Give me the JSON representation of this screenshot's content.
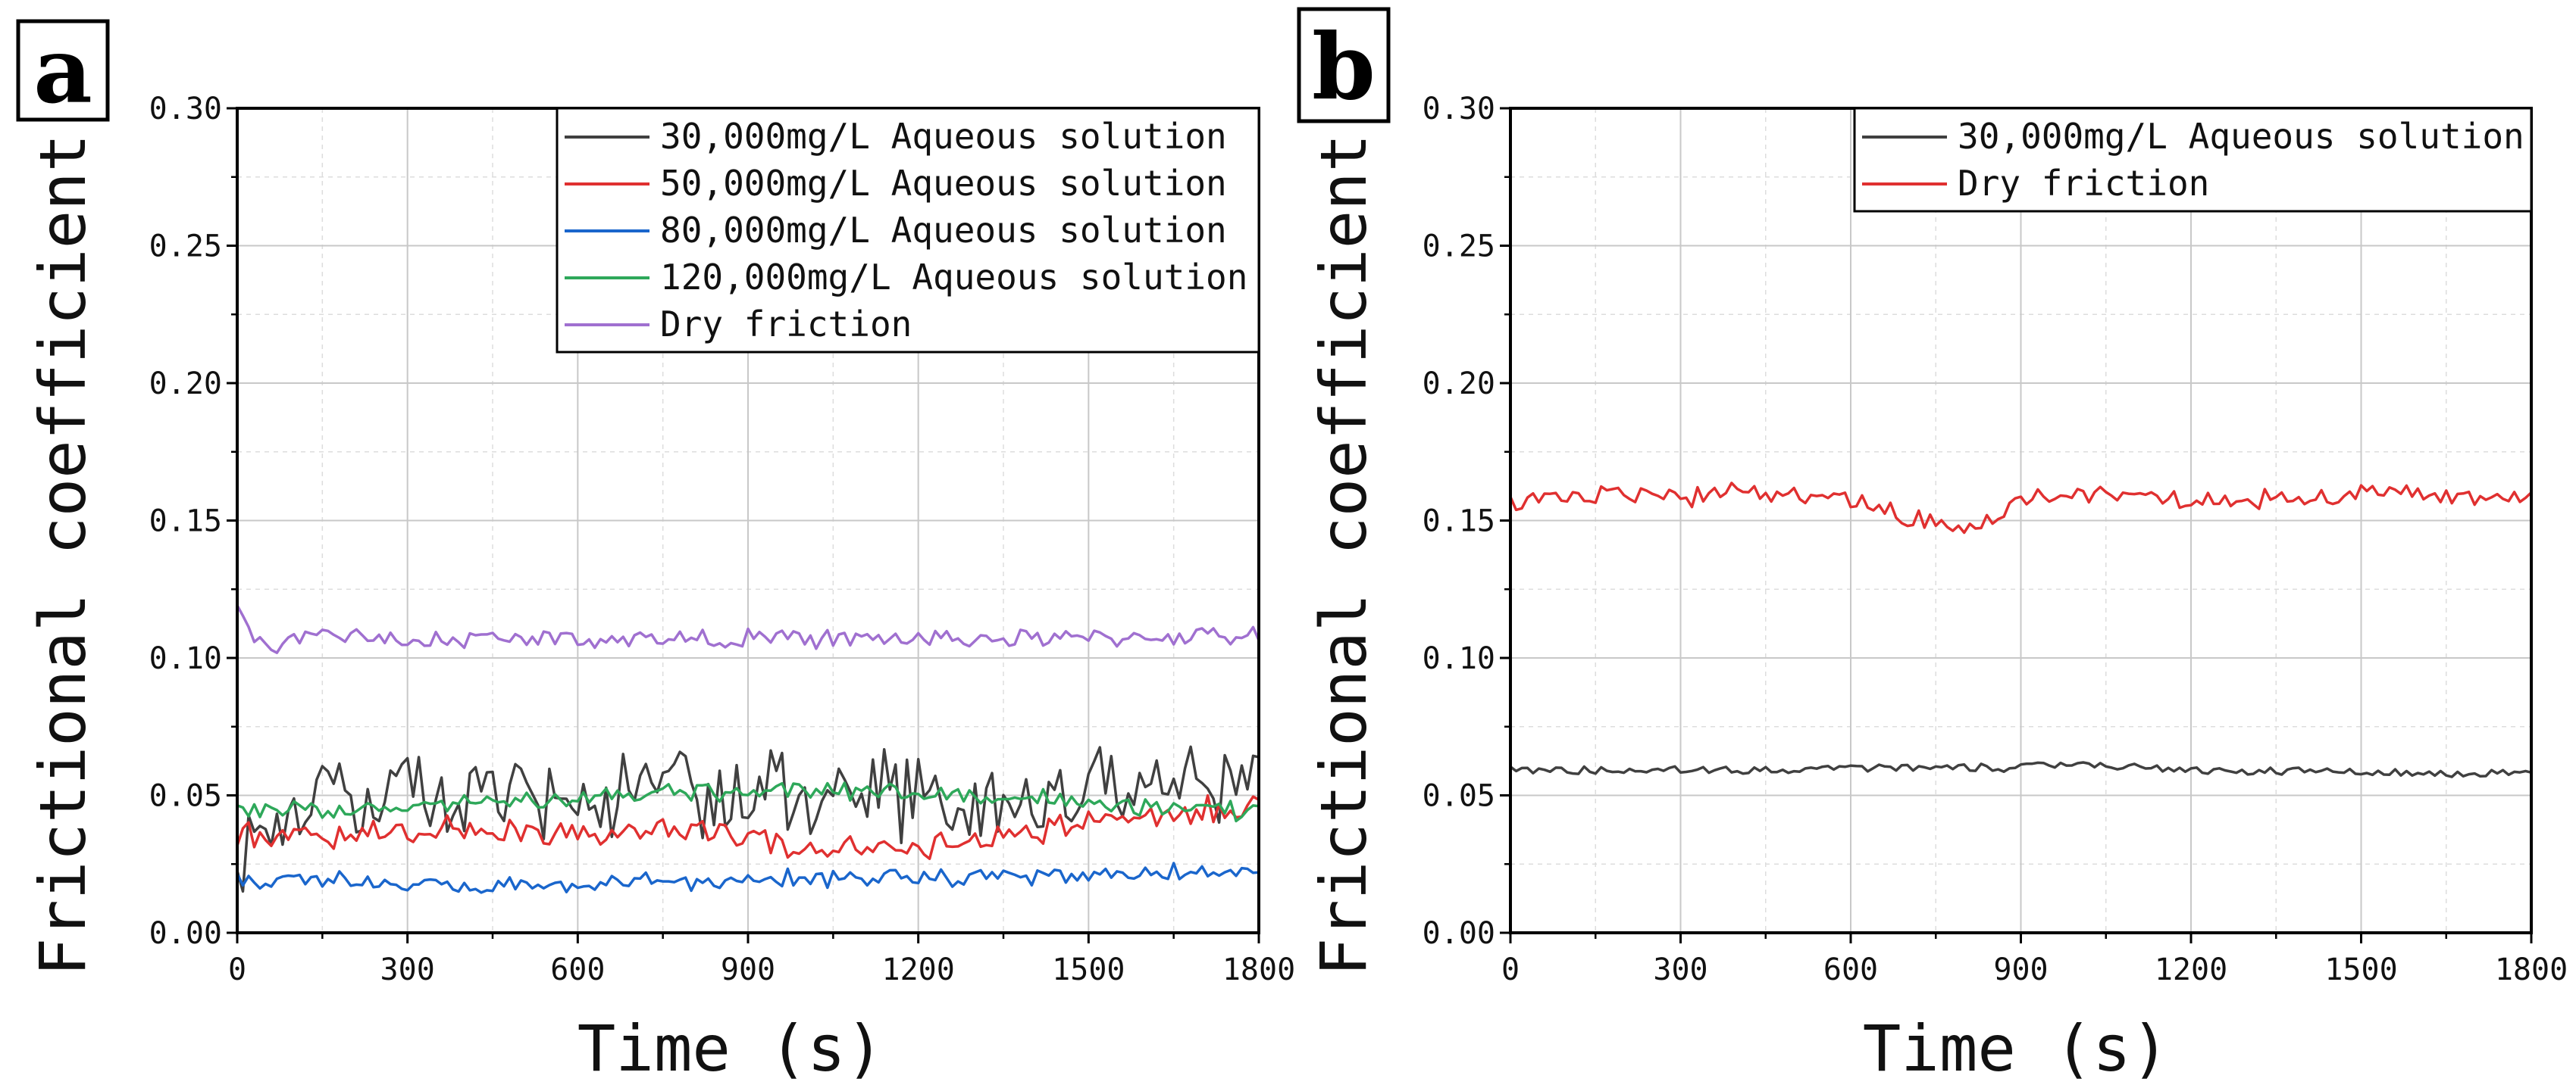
{
  "chart_data": [
    {
      "panel_label": "a",
      "type": "line",
      "xlabel": "Time (s)",
      "ylabel": "Frictional coefficient",
      "xlim": [
        0,
        1800
      ],
      "ylim": [
        0,
        0.3
      ],
      "xticks": [
        "0",
        "300",
        "600",
        "900",
        "1200",
        "1500",
        "1800"
      ],
      "yticks": [
        "0.00",
        "0.05",
        "0.10",
        "0.15",
        "0.20",
        "0.25",
        "0.30"
      ],
      "grid": true,
      "legend_position": "top-right",
      "series": [
        {
          "name": "30,000mg/L Aqueous solution",
          "color": "#404040",
          "x": [
            0,
            100,
            200,
            300,
            400,
            500,
            600,
            700,
            800,
            900,
            1000,
            1100,
            1200,
            1300,
            1400,
            1500,
            1600,
            1700,
            1800
          ],
          "y": [
            0.03,
            0.045,
            0.047,
            0.05,
            0.048,
            0.046,
            0.05,
            0.052,
            0.05,
            0.049,
            0.051,
            0.05,
            0.048,
            0.047,
            0.046,
            0.052,
            0.054,
            0.055,
            0.055
          ],
          "noise": 0.018
        },
        {
          "name": "50,000mg/L Aqueous solution",
          "color": "#e03030",
          "x": [
            0,
            100,
            200,
            300,
            400,
            500,
            600,
            700,
            800,
            900,
            1000,
            1100,
            1200,
            1300,
            1400,
            1500,
            1600,
            1700,
            1800
          ],
          "y": [
            0.035,
            0.035,
            0.036,
            0.037,
            0.038,
            0.037,
            0.036,
            0.036,
            0.038,
            0.034,
            0.03,
            0.031,
            0.031,
            0.033,
            0.037,
            0.04,
            0.042,
            0.044,
            0.045
          ],
          "noise": 0.006
        },
        {
          "name": "80,000mg/L Aqueous solution",
          "color": "#1a66cc",
          "x": [
            0,
            100,
            200,
            300,
            400,
            500,
            600,
            700,
            800,
            900,
            1000,
            1100,
            1200,
            1300,
            1400,
            1500,
            1600,
            1700,
            1800
          ],
          "y": [
            0.019,
            0.02,
            0.019,
            0.018,
            0.017,
            0.017,
            0.018,
            0.019,
            0.019,
            0.02,
            0.02,
            0.02,
            0.02,
            0.02,
            0.021,
            0.021,
            0.022,
            0.022,
            0.023
          ],
          "noise": 0.004
        },
        {
          "name": "120,000mg/L Aqueous solution",
          "color": "#2ea85a",
          "x": [
            0,
            100,
            200,
            300,
            400,
            500,
            600,
            700,
            800,
            900,
            1000,
            1100,
            1200,
            1300,
            1400,
            1500,
            1600,
            1700,
            1800
          ],
          "y": [
            0.044,
            0.045,
            0.045,
            0.046,
            0.047,
            0.048,
            0.049,
            0.05,
            0.051,
            0.052,
            0.052,
            0.051,
            0.051,
            0.05,
            0.049,
            0.048,
            0.046,
            0.045,
            0.044
          ],
          "noise": 0.004
        },
        {
          "name": "Dry friction",
          "color": "#a070d0",
          "x": [
            0,
            30,
            60,
            100,
            200,
            300,
            400,
            500,
            600,
            700,
            800,
            900,
            1000,
            1100,
            1200,
            1300,
            1400,
            1500,
            1600,
            1700,
            1800
          ],
          "y": [
            0.117,
            0.108,
            0.103,
            0.107,
            0.108,
            0.107,
            0.107,
            0.107,
            0.107,
            0.107,
            0.107,
            0.107,
            0.107,
            0.107,
            0.107,
            0.107,
            0.107,
            0.107,
            0.108,
            0.108,
            0.108
          ],
          "noise": 0.004
        }
      ]
    },
    {
      "panel_label": "b",
      "type": "line",
      "xlabel": "Time (s)",
      "ylabel": "Frictional coefficient",
      "xlim": [
        0,
        1800
      ],
      "ylim": [
        0,
        0.3
      ],
      "xticks": [
        "0",
        "300",
        "600",
        "900",
        "1200",
        "1500",
        "1800"
      ],
      "yticks": [
        "0.00",
        "0.05",
        "0.10",
        "0.15",
        "0.20",
        "0.25",
        "0.30"
      ],
      "grid": true,
      "legend_position": "top-right",
      "series": [
        {
          "name": "30,000mg/L Aqueous solution",
          "color": "#404040",
          "x": [
            0,
            200,
            400,
            600,
            800,
            1000,
            1100,
            1200,
            1400,
            1600,
            1800
          ],
          "y": [
            0.059,
            0.059,
            0.059,
            0.06,
            0.06,
            0.061,
            0.061,
            0.059,
            0.059,
            0.058,
            0.058
          ],
          "noise": 0.002
        },
        {
          "name": "Dry friction",
          "color": "#e03030",
          "x": [
            0,
            100,
            200,
            300,
            400,
            500,
            600,
            700,
            800,
            850,
            900,
            1000,
            1100,
            1200,
            1300,
            1400,
            1500,
            1600,
            1700,
            1800
          ],
          "y": [
            0.156,
            0.159,
            0.16,
            0.158,
            0.16,
            0.159,
            0.158,
            0.151,
            0.146,
            0.15,
            0.158,
            0.16,
            0.159,
            0.158,
            0.158,
            0.158,
            0.16,
            0.159,
            0.159,
            0.158
          ],
          "noise": 0.004
        }
      ]
    }
  ]
}
